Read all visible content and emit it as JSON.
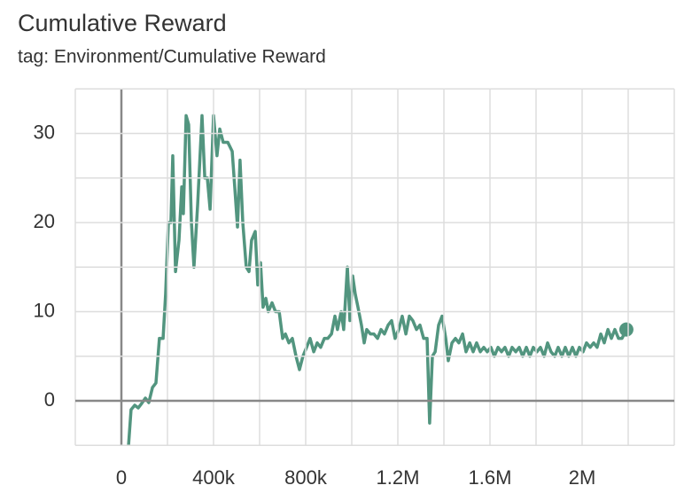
{
  "chart_data": {
    "type": "line",
    "title": "Cumulative Reward",
    "subtitle": "tag: Environment/Cumulative Reward",
    "xlim": [
      -200000,
      2400000
    ],
    "ylim": [
      -5,
      35
    ],
    "xticks": [
      {
        "value": 0,
        "label": "0"
      },
      {
        "value": 400000,
        "label": "400k"
      },
      {
        "value": 800000,
        "label": "800k"
      },
      {
        "value": 1200000,
        "label": "1.2M"
      },
      {
        "value": 1600000,
        "label": "1.6M"
      },
      {
        "value": 2000000,
        "label": "2M"
      }
    ],
    "yticks": [
      0,
      10,
      20,
      30
    ],
    "xgrid": [
      -200000,
      0,
      200000,
      400000,
      600000,
      800000,
      1000000,
      1200000,
      1400000,
      1600000,
      1800000,
      2000000,
      2200000,
      2400000
    ],
    "ygrid": [
      -5,
      0,
      5,
      10,
      15,
      20,
      25,
      30,
      35
    ],
    "grid": true,
    "series": [
      {
        "name": "Environment/Cumulative Reward",
        "color": "#52957f",
        "x": [
          31000,
          42000,
          58000,
          73000,
          88000,
          104000,
          119000,
          135000,
          150000,
          165000,
          181000,
          192000,
          204000,
          215000,
          223000,
          235000,
          250000,
          262000,
          269000,
          281000,
          292000,
          304000,
          315000,
          331000,
          350000,
          362000,
          373000,
          385000,
          400000,
          415000,
          427000,
          442000,
          462000,
          481000,
          492000,
          504000,
          515000,
          527000,
          542000,
          554000,
          565000,
          581000,
          592000,
          604000,
          615000,
          627000,
          638000,
          654000,
          669000,
          685000,
          700000,
          712000,
          727000,
          742000,
          758000,
          773000,
          788000,
          804000,
          819000,
          835000,
          850000,
          865000,
          881000,
          896000,
          912000,
          927000,
          938000,
          954000,
          965000,
          981000,
          992000,
          1004000,
          1015000,
          1027000,
          1042000,
          1054000,
          1065000,
          1081000,
          1096000,
          1112000,
          1127000,
          1142000,
          1158000,
          1173000,
          1188000,
          1204000,
          1219000,
          1235000,
          1250000,
          1265000,
          1281000,
          1296000,
          1312000,
          1327000,
          1338000,
          1350000,
          1362000,
          1377000,
          1392000,
          1408000,
          1419000,
          1435000,
          1450000,
          1465000,
          1481000,
          1496000,
          1512000,
          1527000,
          1542000,
          1558000,
          1573000,
          1588000,
          1604000,
          1619000,
          1635000,
          1650000,
          1665000,
          1681000,
          1696000,
          1712000,
          1727000,
          1742000,
          1758000,
          1773000,
          1788000,
          1804000,
          1819000,
          1835000,
          1850000,
          1865000,
          1881000,
          1896000,
          1912000,
          1927000,
          1942000,
          1958000,
          1973000,
          1988000,
          2004000,
          2019000,
          2035000,
          2050000,
          2065000,
          2081000,
          2096000,
          2112000,
          2127000,
          2142000,
          2158000,
          2173000,
          2192000
        ],
        "values": [
          -5,
          -1,
          -0.5,
          -0.8,
          -0.3,
          0.3,
          -0.2,
          1.5,
          2,
          7,
          7,
          12,
          20,
          20,
          27.5,
          14.5,
          18,
          24,
          21,
          32,
          31,
          20,
          15,
          22,
          32,
          25,
          25,
          21.5,
          32,
          27.5,
          30.5,
          29,
          29,
          28,
          24,
          19.5,
          27,
          20,
          15,
          14.5,
          18,
          19,
          13,
          15.5,
          10.5,
          11.5,
          10,
          11,
          10,
          10,
          7,
          7.5,
          6.5,
          7,
          5,
          3.5,
          5,
          6,
          7,
          5.5,
          6.5,
          6,
          7,
          7,
          7.5,
          9.5,
          8,
          10,
          8,
          15,
          9,
          14,
          12,
          10.5,
          8.5,
          6.5,
          8,
          7.5,
          7.5,
          7,
          8,
          7.5,
          8.5,
          9,
          7,
          8,
          9.5,
          7.5,
          9.5,
          9,
          8,
          8.5,
          7,
          7,
          -2.5,
          5,
          5.5,
          8.5,
          9.5,
          7,
          4.5,
          6.5,
          7,
          6.5,
          7.5,
          5.5,
          6.5,
          5.5,
          6.5,
          5.5,
          6,
          5.5,
          6,
          5,
          6,
          5.5,
          6,
          5,
          6,
          5.5,
          6,
          5,
          6,
          5,
          6,
          5.5,
          6,
          5,
          6.5,
          5.5,
          5,
          6,
          5,
          6,
          5,
          6,
          5,
          6,
          5.5,
          6.5,
          6,
          6.5,
          6,
          7.5,
          6.5,
          8,
          7,
          8,
          7,
          7,
          8
        ]
      }
    ]
  }
}
